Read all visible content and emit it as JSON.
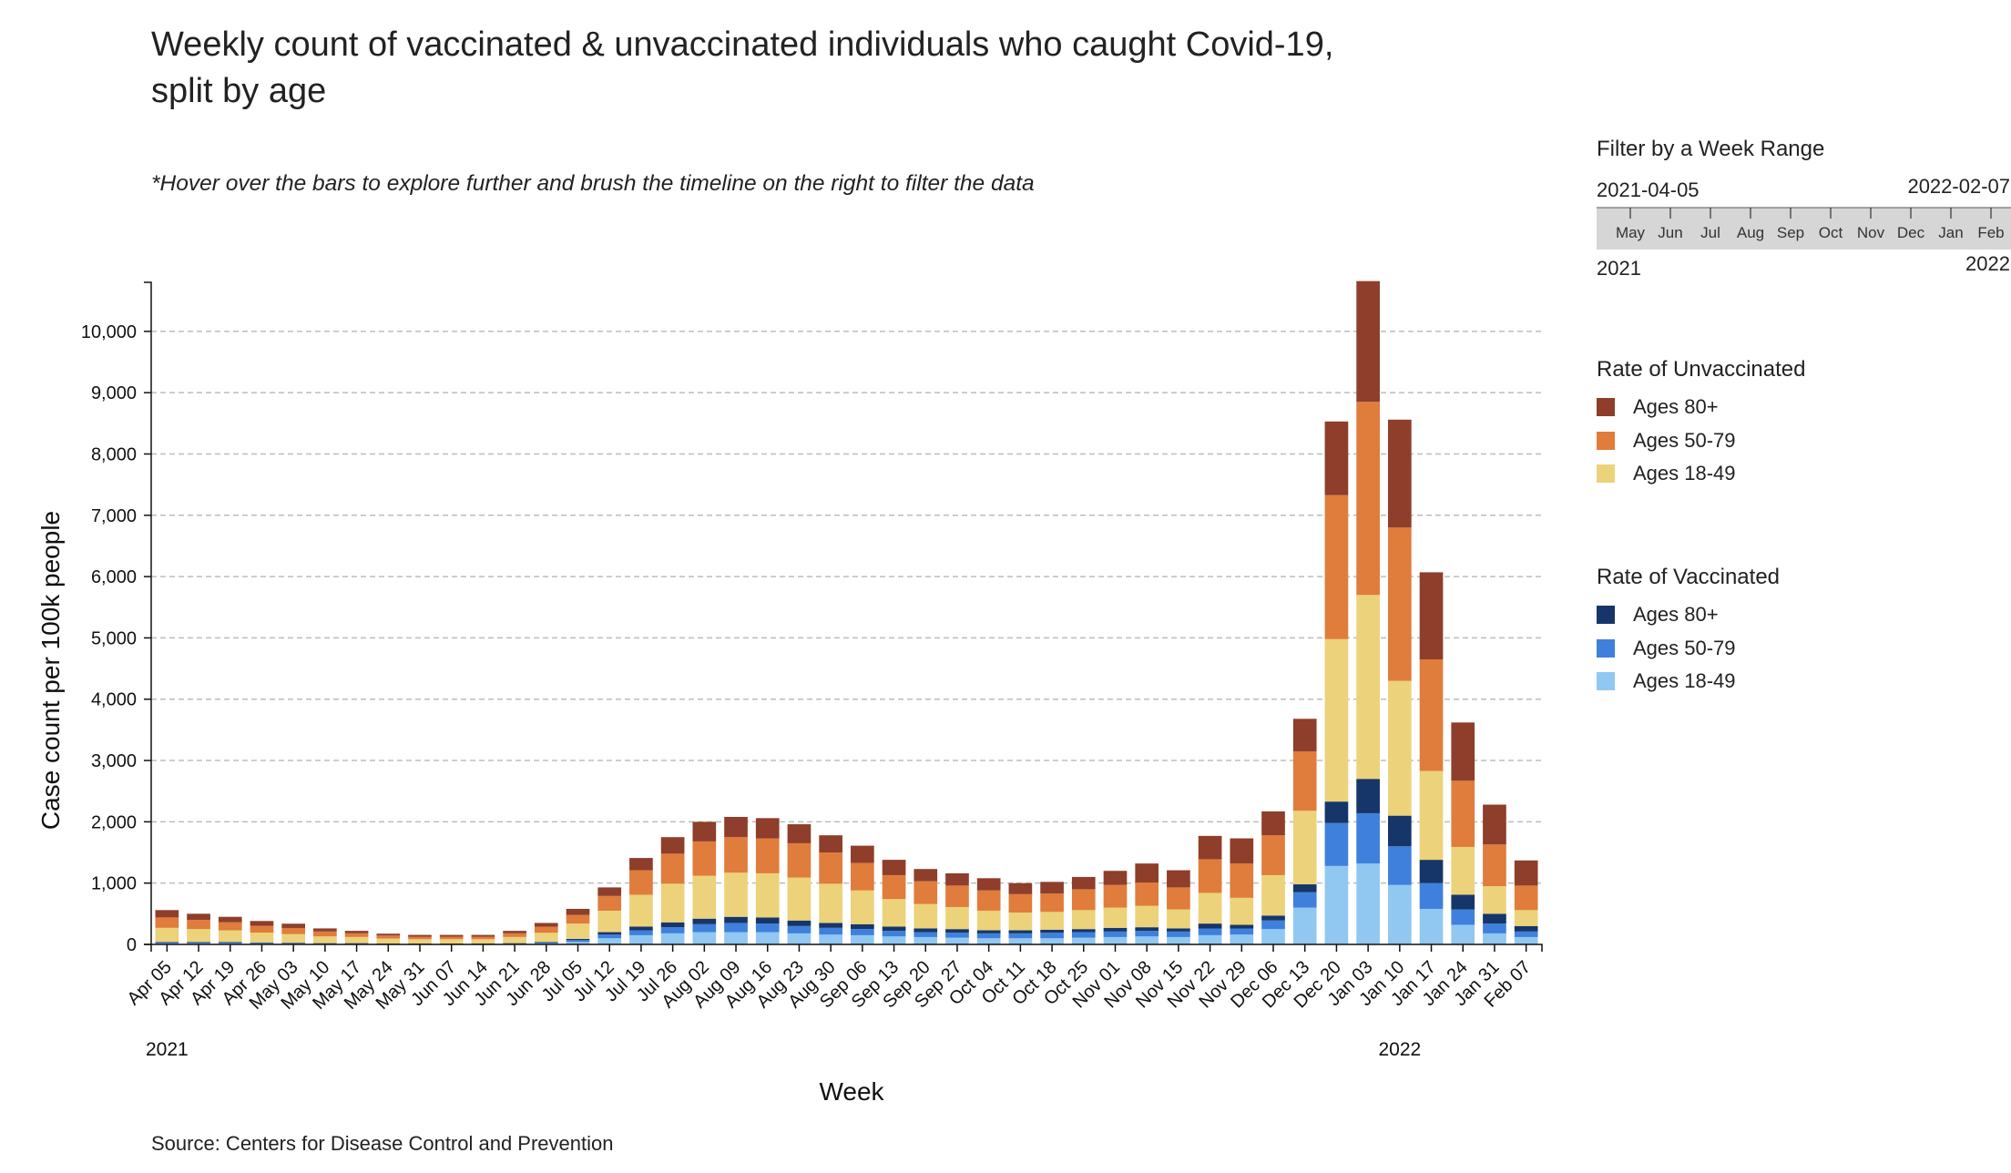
{
  "header": {
    "title": "Weekly count of vaccinated & unvaccinated individuals who caught Covid-19, split by age",
    "subtitle": "*Hover over the bars to explore further and brush the timeline on the right to filter the data",
    "source": "Source: Centers for Disease Control and Prevention"
  },
  "filter": {
    "heading": "Filter by a Week Range",
    "start_label": "2021-04-05",
    "end_label": "2022-02-07",
    "months": [
      "May",
      "Jun",
      "Jul",
      "Aug",
      "Sep",
      "Oct",
      "Nov",
      "Dec",
      "Jan",
      "Feb"
    ],
    "year_start": "2021",
    "year_end": "2022"
  },
  "legend_unvax": {
    "heading": "Rate of Unvaccinated",
    "items": [
      {
        "label": "Ages 80+",
        "color": "#8e3e2a"
      },
      {
        "label": "Ages 50-79",
        "color": "#e07c3c"
      },
      {
        "label": "Ages 18-49",
        "color": "#ecd27a"
      }
    ]
  },
  "legend_vax": {
    "heading": "Rate of Vaccinated",
    "items": [
      {
        "label": "Ages 80+",
        "color": "#16366a"
      },
      {
        "label": "Ages 50-79",
        "color": "#3f80dc"
      },
      {
        "label": "Ages 18-49",
        "color": "#91c8f1"
      }
    ]
  },
  "chart_data": {
    "type": "bar",
    "stacked": true,
    "xlabel": "Week",
    "ylabel": "Case count per 100k people",
    "ylim": [
      0,
      10800
    ],
    "yticks": [
      0,
      1000,
      2000,
      3000,
      4000,
      5000,
      6000,
      7000,
      8000,
      9000,
      10000
    ],
    "ytick_labels": [
      "0",
      "1,000",
      "2,000",
      "3,000",
      "4,000",
      "5,000",
      "6,000",
      "7,000",
      "8,000",
      "9,000",
      "10,000"
    ],
    "grid": "horizontal dashed",
    "year_labels": [
      {
        "index": 0,
        "text": "2021"
      },
      {
        "index": 39,
        "text": "2022"
      }
    ],
    "categories": [
      "Apr 05",
      "Apr 12",
      "Apr 19",
      "Apr 26",
      "May 03",
      "May 10",
      "May 17",
      "May 24",
      "May 31",
      "Jun 07",
      "Jun 14",
      "Jun 21",
      "Jun 28",
      "Jul 05",
      "Jul 12",
      "Jul 19",
      "Jul 26",
      "Aug 02",
      "Aug 09",
      "Aug 16",
      "Aug 23",
      "Aug 30",
      "Sep 06",
      "Sep 13",
      "Sep 20",
      "Sep 27",
      "Oct 04",
      "Oct 11",
      "Oct 18",
      "Oct 25",
      "Nov 01",
      "Nov 08",
      "Nov 15",
      "Nov 22",
      "Nov 29",
      "Dec 06",
      "Dec 13",
      "Dec 20",
      "Jan 03",
      "Jan 10",
      "Jan 17",
      "Jan 24",
      "Jan 31",
      "Feb 07"
    ],
    "series": [
      {
        "name": "Ages 18-49",
        "group": "Vaccinated",
        "color": "#91c8f1",
        "values": [
          15,
          15,
          15,
          12,
          10,
          8,
          8,
          5,
          5,
          5,
          5,
          8,
          15,
          40,
          100,
          150,
          180,
          200,
          200,
          200,
          180,
          160,
          150,
          130,
          120,
          110,
          100,
          100,
          100,
          110,
          120,
          130,
          120,
          150,
          160,
          250,
          600,
          1280,
          1320,
          970,
          580,
          320,
          180,
          120
        ]
      },
      {
        "name": "Ages 50-79",
        "group": "Vaccinated",
        "color": "#3f80dc",
        "values": [
          15,
          15,
          15,
          12,
          10,
          8,
          8,
          5,
          5,
          5,
          5,
          8,
          15,
          30,
          60,
          80,
          100,
          130,
          150,
          140,
          120,
          110,
          100,
          90,
          80,
          80,
          80,
          80,
          90,
          90,
          90,
          90,
          90,
          110,
          100,
          140,
          250,
          700,
          820,
          630,
          420,
          250,
          160,
          90
        ]
      },
      {
        "name": "Ages 80+",
        "group": "Vaccinated",
        "color": "#16366a",
        "values": [
          10,
          10,
          10,
          8,
          8,
          5,
          5,
          5,
          5,
          5,
          5,
          5,
          10,
          20,
          40,
          60,
          80,
          90,
          100,
          100,
          90,
          80,
          80,
          70,
          60,
          60,
          50,
          50,
          50,
          50,
          60,
          60,
          50,
          80,
          60,
          80,
          130,
          350,
          560,
          500,
          380,
          240,
          160,
          90
        ]
      },
      {
        "name": "Ages 18-49",
        "group": "Unvaccinated",
        "color": "#ecd27a",
        "values": [
          230,
          210,
          190,
          160,
          140,
          110,
          100,
          80,
          70,
          70,
          70,
          100,
          150,
          250,
          350,
          520,
          630,
          700,
          720,
          720,
          700,
          640,
          550,
          450,
          400,
          360,
          320,
          290,
          290,
          310,
          330,
          350,
          310,
          500,
          440,
          660,
          1200,
          2650,
          3000,
          2200,
          1450,
          780,
          450,
          260
        ]
      },
      {
        "name": "Ages 50-79",
        "group": "Unvaccinated",
        "color": "#e07c3c",
        "values": [
          170,
          150,
          130,
          110,
          100,
          80,
          60,
          50,
          40,
          40,
          40,
          60,
          100,
          140,
          240,
          400,
          490,
          560,
          580,
          570,
          560,
          510,
          450,
          390,
          370,
          350,
          330,
          300,
          300,
          340,
          370,
          380,
          360,
          550,
          560,
          650,
          970,
          2350,
          3150,
          2500,
          1820,
          1080,
          680,
          400
        ]
      },
      {
        "name": "Ages 80+",
        "group": "Unvaccinated",
        "color": "#8e3e2a",
        "values": [
          120,
          100,
          90,
          80,
          70,
          50,
          40,
          30,
          30,
          30,
          30,
          40,
          60,
          100,
          140,
          200,
          270,
          320,
          330,
          330,
          310,
          280,
          280,
          250,
          200,
          200,
          200,
          180,
          190,
          200,
          230,
          310,
          280,
          380,
          410,
          390,
          530,
          1200,
          1970,
          1760,
          1420,
          950,
          650,
          410
        ]
      }
    ]
  }
}
